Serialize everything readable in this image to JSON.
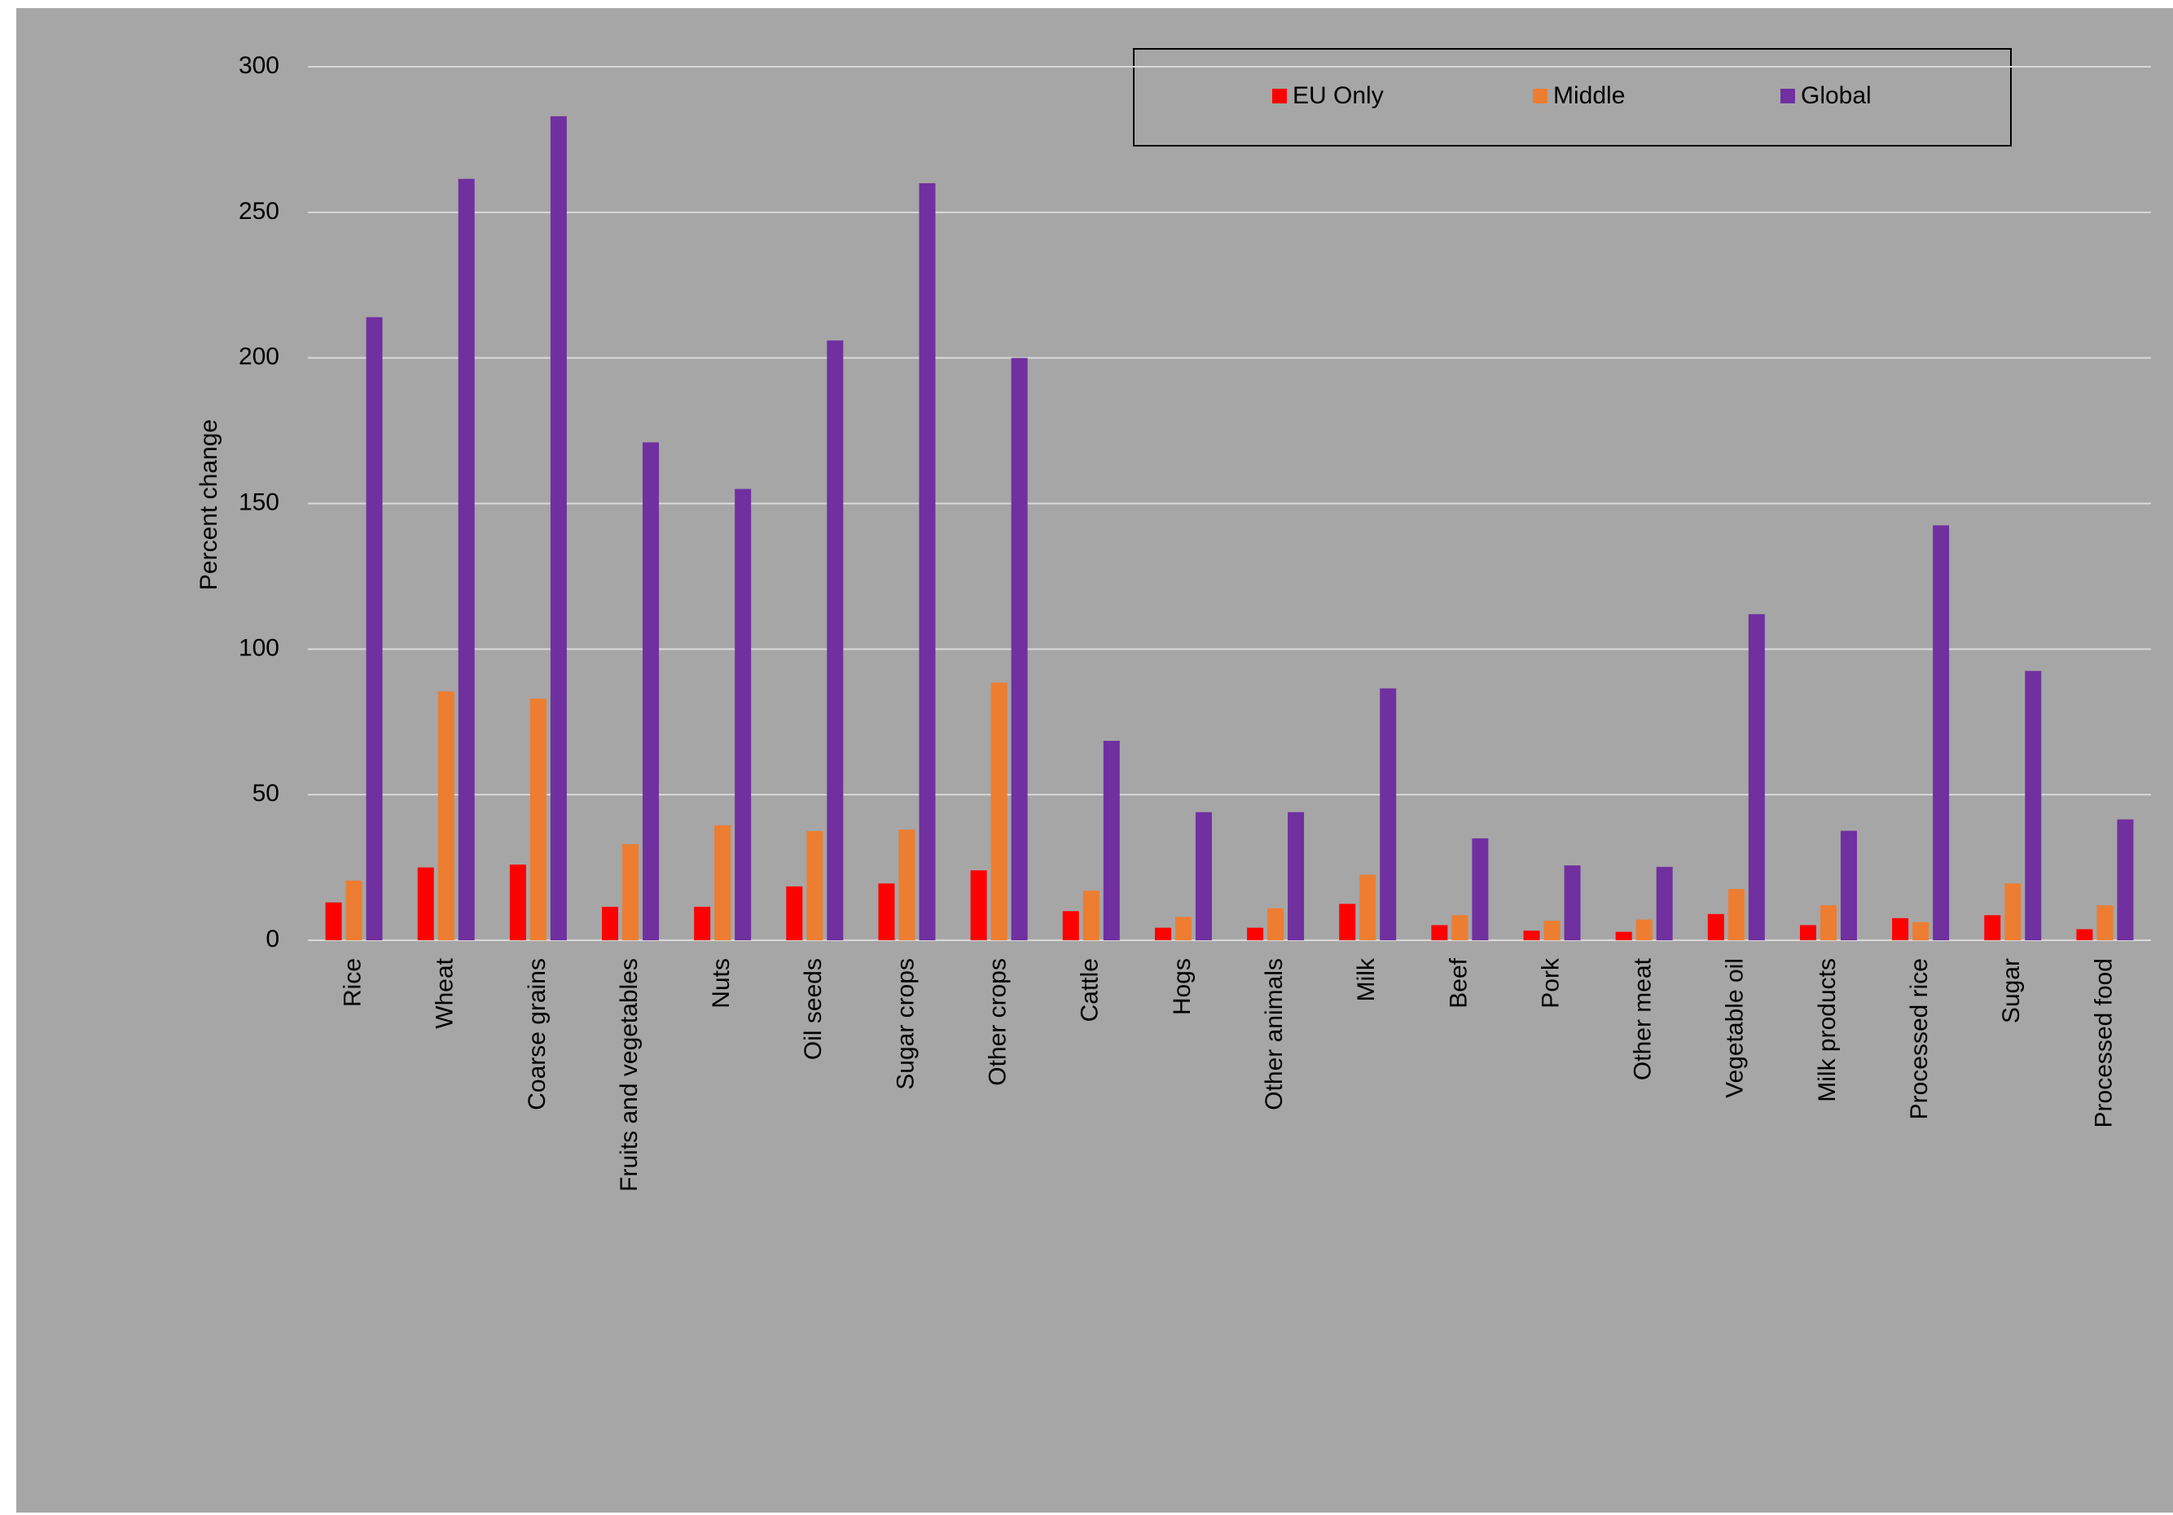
{
  "chart_data": {
    "type": "bar",
    "ylabel": "Percent change",
    "categories": [
      "Rice",
      "Wheat",
      "Coarse grains",
      "Fruits and vegetables",
      "Nuts",
      "Oil seeds",
      "Sugar crops",
      "Other crops",
      "Cattle",
      "Hogs",
      "Other animals",
      "Milk",
      "Beef",
      "Pork",
      "Other meat",
      "Vegetable oil",
      "Milk products",
      "Processed rice",
      "Sugar",
      "Processed food"
    ],
    "series": [
      {
        "name": "EU Only",
        "color": "#ff0000",
        "values": [
          13,
          25,
          26,
          11.5,
          11.5,
          18.5,
          19.5,
          24,
          10,
          4.3,
          4.3,
          12.5,
          5.2,
          3.3,
          2.9,
          9,
          5.2,
          7.6,
          8.6,
          3.8
        ]
      },
      {
        "name": "Middle",
        "color": "#ed7d31",
        "values": [
          20.5,
          85.5,
          83,
          33,
          39.5,
          37.5,
          38,
          88.5,
          17,
          8,
          11,
          22.5,
          8.6,
          6.7,
          7.1,
          17.6,
          12,
          6.2,
          19.5,
          12
        ]
      },
      {
        "name": "Global",
        "color": "#7030a0",
        "values": [
          214,
          261.5,
          283,
          171,
          155,
          206,
          260,
          200,
          68.5,
          44,
          44,
          86.5,
          35,
          25.7,
          25.2,
          112,
          37.6,
          142.5,
          92.5,
          41.5
        ]
      }
    ],
    "ylim": [
      0,
      300
    ],
    "yticks": [
      0,
      50,
      100,
      150,
      200,
      250,
      300
    ],
    "grid": true,
    "legend": "top-right"
  }
}
